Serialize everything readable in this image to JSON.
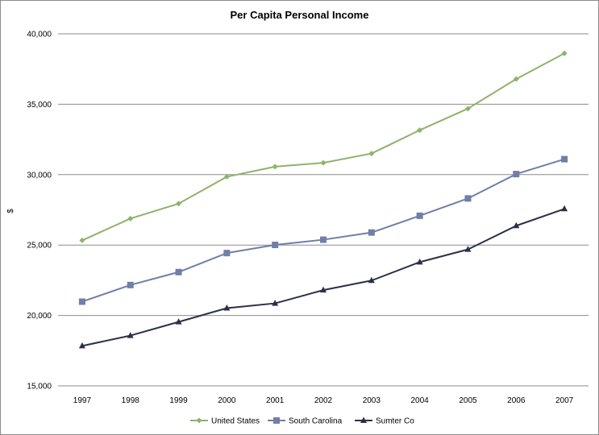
{
  "chart_data": {
    "type": "line",
    "title": "Per Capita Personal Income",
    "xlabel": "",
    "ylabel": "$",
    "x": [
      "1997",
      "1998",
      "1999",
      "2000",
      "2001",
      "2002",
      "2003",
      "2004",
      "2005",
      "2006",
      "2007"
    ],
    "ylim": [
      15000,
      40000
    ],
    "yticks": [
      15000,
      20000,
      25000,
      30000,
      35000,
      40000
    ],
    "ytick_labels": [
      "15,000",
      "20,000",
      "25,000",
      "30,000",
      "35,000",
      "40,000"
    ],
    "grid": true,
    "legend_position": "bottom",
    "series": [
      {
        "name": "United States",
        "color": "#8fb26b",
        "marker": "diamond",
        "values": [
          25330,
          26880,
          27940,
          29850,
          30570,
          30840,
          31500,
          33160,
          34690,
          36790,
          38610
        ]
      },
      {
        "name": "South Carolina",
        "color": "#707ea8",
        "marker": "square",
        "values": [
          20980,
          22160,
          23080,
          24430,
          25010,
          25380,
          25890,
          27080,
          28310,
          30040,
          31100
        ]
      },
      {
        "name": "Sumter Co",
        "color": "#2b3046",
        "marker": "triangle",
        "values": [
          17840,
          18570,
          19540,
          20520,
          20860,
          21800,
          22480,
          23790,
          24690,
          26370,
          27570
        ]
      }
    ]
  }
}
